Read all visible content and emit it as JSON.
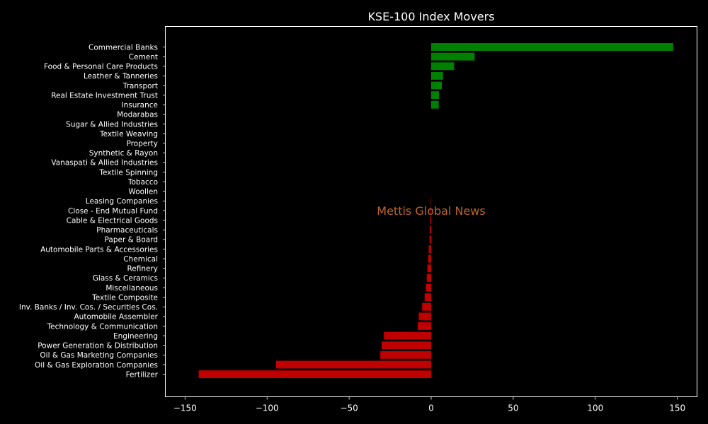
{
  "chart_data": {
    "type": "bar",
    "orientation": "horizontal",
    "title": "KSE-100 Index Movers",
    "xlabel": "",
    "ylabel": "",
    "xlim": [
      -162,
      162
    ],
    "xticks": [
      -150,
      -100,
      -50,
      0,
      50,
      100,
      150
    ],
    "xtick_labels": [
      "−150",
      "−100",
      "−50",
      "0",
      "50",
      "100",
      "150"
    ],
    "grid": false,
    "categories": [
      "Commercial Banks",
      "Cement",
      "Food & Personal Care Products",
      "Leather & Tanneries",
      "Transport",
      "Real Estate Investment Trust",
      "Insurance",
      "Modarabas",
      "Sugar & Allied Industries",
      "Textile Weaving",
      "Property",
      "Synthetic & Rayon",
      "Vanaspati & Allied Industries",
      "Textile Spinning",
      "Tobacco",
      "Woollen",
      "Leasing Companies",
      "Close - End Mutual Fund",
      "Cable & Electrical Goods",
      "Pharmaceuticals",
      "Paper & Board",
      "Automobile Parts & Accessories",
      "Chemical",
      "Refinery",
      "Glass & Ceramics",
      "Miscellaneous",
      "Textile Composite",
      "Inv. Banks / Inv. Cos. / Securities Cos.",
      "Automobile Assembler",
      "Technology & Communication",
      "Engineering",
      "Power Generation & Distribution",
      "Oil & Gas Marketing Companies",
      "Oil & Gas Exploration Companies",
      "Fertilizer"
    ],
    "values": [
      147.5,
      26.5,
      14,
      7.2,
      6.5,
      4.8,
      4.6,
      0,
      0,
      0,
      0,
      0,
      0,
      0,
      0,
      0,
      -0.2,
      -0.4,
      -0.6,
      -0.8,
      -1.0,
      -1.5,
      -1.8,
      -2.3,
      -2.7,
      -3.2,
      -4.0,
      -5.5,
      -7.6,
      -8.2,
      -28.8,
      -30.2,
      -31.0,
      -94.5,
      -141.7
    ],
    "colors": {
      "positive": "#008000",
      "negative": "#c00000"
    },
    "watermark": "Mettis Global News"
  }
}
